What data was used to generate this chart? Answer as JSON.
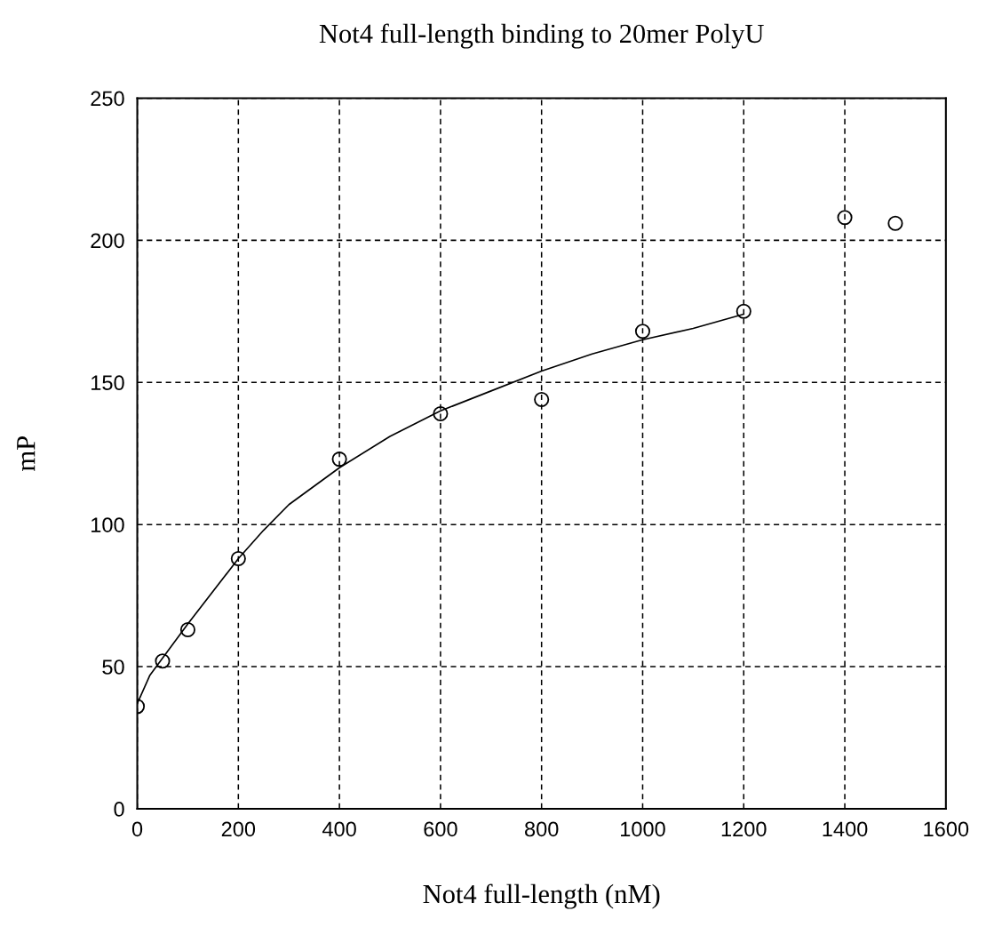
{
  "chart_data": {
    "type": "scatter",
    "title": "Not4 full-length binding to 20mer PolyU",
    "xlabel": "Not4 full-length (nM)",
    "ylabel": "mP",
    "xlim": [
      0,
      1600
    ],
    "xticks": [
      0,
      200,
      400,
      600,
      800,
      1000,
      1200,
      1400,
      1600
    ],
    "ylim": [
      0,
      250
    ],
    "yticks": [
      0,
      50,
      100,
      150,
      200,
      250
    ],
    "grid": true,
    "series": [
      {
        "marker": "circle",
        "color": "#000000",
        "x": [
          0,
          50,
          100,
          200,
          400,
          600,
          800,
          1000,
          1200,
          1400,
          1500
        ],
        "values": [
          36,
          52,
          63,
          88,
          123,
          139,
          144,
          168,
          175,
          208,
          206
        ]
      },
      {
        "type": "line",
        "color": "#000000",
        "x": [
          0,
          25,
          50,
          100,
          200,
          250,
          300,
          400,
          500,
          600,
          700,
          800,
          900,
          1000,
          1100,
          1200
        ],
        "values": [
          37,
          47,
          53,
          65,
          88,
          98,
          107,
          120,
          131,
          140,
          147,
          154,
          160,
          165,
          169,
          174
        ]
      }
    ]
  }
}
